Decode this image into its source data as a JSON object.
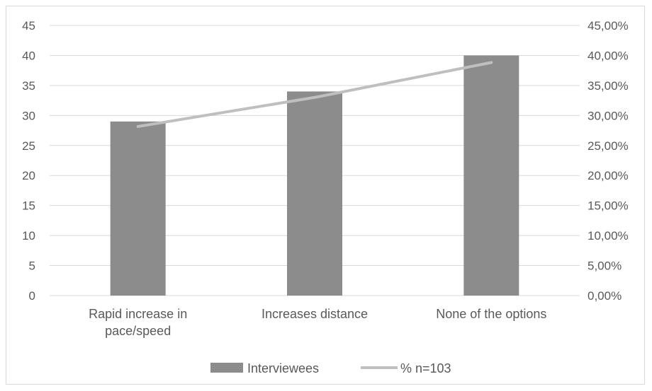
{
  "chart_data": {
    "type": "bar",
    "categories": [
      [
        "Rapid increase in",
        "pace/speed"
      ],
      [
        "Increases distance"
      ],
      [
        "None of the options"
      ]
    ],
    "series": [
      {
        "name": "Interviewees",
        "type": "bar",
        "axis": "left",
        "color": "#8c8c8c",
        "values": [
          29,
          34,
          40
        ]
      },
      {
        "name": "% n=103",
        "type": "line",
        "axis": "right",
        "color": "#bfbfbf",
        "values": [
          0.2816,
          0.3301,
          0.3883
        ]
      }
    ],
    "y_left": {
      "min": 0,
      "max": 45,
      "ticks": [
        "0",
        "5",
        "10",
        "15",
        "20",
        "25",
        "30",
        "35",
        "40",
        "45"
      ]
    },
    "y_right": {
      "min": 0,
      "max": 0.45,
      "ticks": [
        "0,00%",
        "5,00%",
        "10,00%",
        "15,00%",
        "20,00%",
        "25,00%",
        "30,00%",
        "35,00%",
        "40,00%",
        "45,00%"
      ]
    },
    "grid": true,
    "legend_position": "bottom",
    "colors": {
      "gridline": "#d9d9d9",
      "axis_text": "#595959"
    }
  }
}
